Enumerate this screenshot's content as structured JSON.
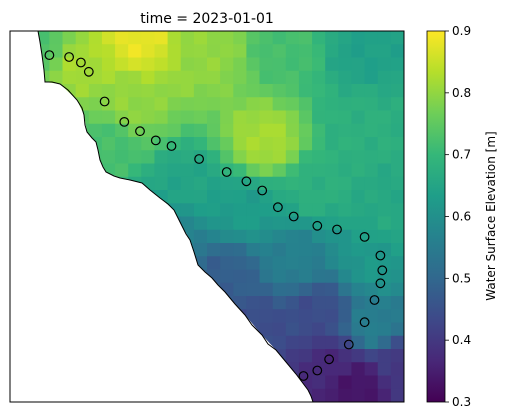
{
  "chart_data": {
    "type": "heatmap",
    "title": "time = 2023-01-01",
    "colorbar": {
      "label": "Water Surface Elevation [m]",
      "ticks": [
        "0.3",
        "0.4",
        "0.5",
        "0.6",
        "0.7",
        "0.8",
        "0.9"
      ],
      "range": [
        0.3,
        0.9
      ],
      "colormap": "viridis"
    },
    "grid": false,
    "field_anchors": [
      {
        "i": 0.08,
        "j": 0.03,
        "value": 0.73
      },
      {
        "i": 0.18,
        "j": 0.08,
        "value": 0.82
      },
      {
        "i": 0.32,
        "j": 0.02,
        "value": 0.88
      },
      {
        "i": 0.3,
        "j": 0.2,
        "value": 0.8
      },
      {
        "i": 0.5,
        "j": 0.05,
        "value": 0.8
      },
      {
        "i": 0.7,
        "j": 0.05,
        "value": 0.72
      },
      {
        "i": 0.9,
        "j": 0.06,
        "value": 0.64
      },
      {
        "i": 0.65,
        "j": 0.3,
        "value": 0.82
      },
      {
        "i": 0.88,
        "j": 0.25,
        "value": 0.68
      },
      {
        "i": 0.25,
        "j": 0.3,
        "value": 0.72
      },
      {
        "i": 0.45,
        "j": 0.42,
        "value": 0.65
      },
      {
        "i": 0.4,
        "j": 0.55,
        "value": 0.56
      },
      {
        "i": 0.6,
        "j": 0.48,
        "value": 0.63
      },
      {
        "i": 0.78,
        "j": 0.42,
        "value": 0.68
      },
      {
        "i": 0.95,
        "j": 0.5,
        "value": 0.66
      },
      {
        "i": 0.55,
        "j": 0.66,
        "value": 0.48
      },
      {
        "i": 0.72,
        "j": 0.62,
        "value": 0.56
      },
      {
        "i": 0.92,
        "j": 0.62,
        "value": 0.62
      },
      {
        "i": 0.62,
        "j": 0.8,
        "value": 0.44
      },
      {
        "i": 0.78,
        "j": 0.76,
        "value": 0.44
      },
      {
        "i": 0.92,
        "j": 0.8,
        "value": 0.56
      },
      {
        "i": 0.88,
        "j": 0.95,
        "value": 0.33
      },
      {
        "i": 0.98,
        "j": 0.9,
        "value": 0.4
      },
      {
        "i": 0.82,
        "j": 0.9,
        "value": 0.37
      }
    ],
    "stations": [
      {
        "i": 0.1,
        "j": 0.065
      },
      {
        "i": 0.15,
        "j": 0.07
      },
      {
        "i": 0.18,
        "j": 0.085
      },
      {
        "i": 0.2,
        "j": 0.11
      },
      {
        "i": 0.24,
        "j": 0.19
      },
      {
        "i": 0.29,
        "j": 0.245
      },
      {
        "i": 0.33,
        "j": 0.27
      },
      {
        "i": 0.37,
        "j": 0.295
      },
      {
        "i": 0.41,
        "j": 0.31
      },
      {
        "i": 0.48,
        "j": 0.345
      },
      {
        "i": 0.55,
        "j": 0.38
      },
      {
        "i": 0.6,
        "j": 0.405
      },
      {
        "i": 0.64,
        "j": 0.43
      },
      {
        "i": 0.68,
        "j": 0.475
      },
      {
        "i": 0.72,
        "j": 0.5
      },
      {
        "i": 0.78,
        "j": 0.525
      },
      {
        "i": 0.83,
        "j": 0.535
      },
      {
        "i": 0.9,
        "j": 0.555
      },
      {
        "i": 0.94,
        "j": 0.605
      },
      {
        "i": 0.945,
        "j": 0.645
      },
      {
        "i": 0.94,
        "j": 0.68
      },
      {
        "i": 0.925,
        "j": 0.725
      },
      {
        "i": 0.9,
        "j": 0.785
      },
      {
        "i": 0.86,
        "j": 0.845
      },
      {
        "i": 0.81,
        "j": 0.885
      },
      {
        "i": 0.78,
        "j": 0.915
      },
      {
        "i": 0.745,
        "j": 0.93
      }
    ]
  },
  "colors": {
    "station_edge": "#000000",
    "coastline": "#000000",
    "land": "#ffffff"
  }
}
